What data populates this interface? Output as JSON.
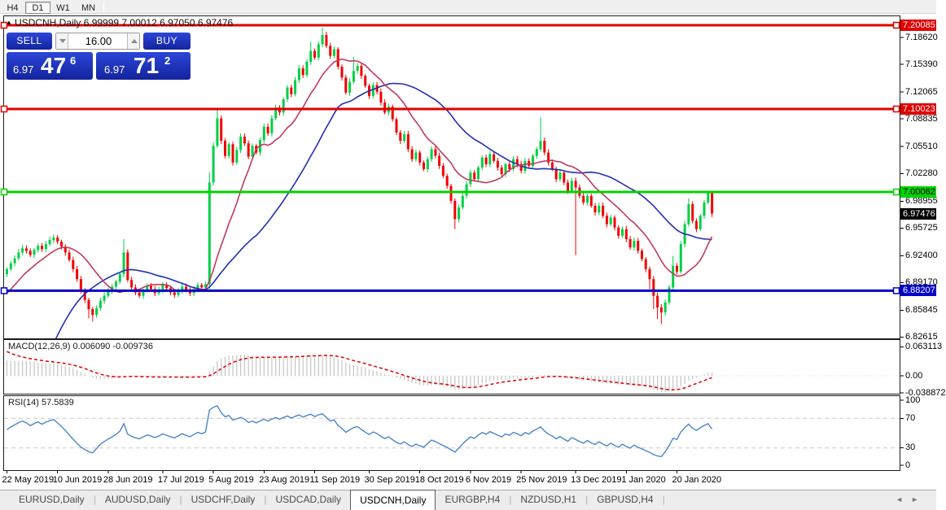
{
  "toolbar": {
    "timeframes": [
      {
        "label": "H4",
        "active": false
      },
      {
        "label": "D1",
        "active": true
      },
      {
        "label": "W1",
        "active": false
      },
      {
        "label": "MN",
        "active": false
      }
    ]
  },
  "chart": {
    "title_symbol": "USDCNH,Daily",
    "title_ohlc": "6.99999 7.00012 6.97050 6.97476",
    "colors": {
      "bull": "#00cf46",
      "bear": "#f20000",
      "ma_fast": "#c13a5e",
      "ma_slow": "#2230b4",
      "macd_bar": "#c4c4c4",
      "macd_signal": "#e00000",
      "rsi_line": "#4a86c9",
      "level_dash": "#c9c9c9"
    },
    "hlines": [
      {
        "label": "7.20085",
        "price": 7.20085,
        "color": "#e00000",
        "text": "#ffffff"
      },
      {
        "label": "7.10023",
        "price": 7.10023,
        "color": "#e00000",
        "text": "#ffffff"
      },
      {
        "label": "7.00062",
        "price": 7.00062,
        "color": "#00d200",
        "text": "#000000"
      },
      {
        "label": "6.88207",
        "price": 6.88207,
        "color": "#0000c8",
        "text": "#ffffff"
      }
    ],
    "current_price": {
      "label": "6.97476",
      "price": 6.97476,
      "bg": "#000000",
      "text": "#ffffff"
    },
    "axis_ticks": [
      {
        "label": "7.18620",
        "price": 7.1862
      },
      {
        "label": "7.15390",
        "price": 7.1539
      },
      {
        "label": "7.12065",
        "price": 7.12065
      },
      {
        "label": "7.08835",
        "price": 7.08835
      },
      {
        "label": "7.05510",
        "price": 7.0551
      },
      {
        "label": "7.02280",
        "price": 7.0228
      },
      {
        "label": "6.98955",
        "price": 6.98955
      },
      {
        "label": "6.95725",
        "price": 6.95725
      },
      {
        "label": "6.92400",
        "price": 6.924
      },
      {
        "label": "6.89170",
        "price": 6.8917
      },
      {
        "label": "6.85845",
        "price": 6.85845
      },
      {
        "label": "6.82615",
        "price": 6.82615
      }
    ],
    "candles": {
      "type": "candlestick",
      "first_open": 6.902,
      "closes": [
        6.908,
        6.915,
        6.921,
        6.928,
        6.933,
        6.93,
        6.925,
        6.931,
        6.936,
        6.932,
        6.938,
        6.943,
        6.946,
        6.941,
        6.935,
        6.928,
        6.919,
        6.908,
        6.896,
        6.882,
        6.871,
        6.86,
        6.853,
        6.861,
        6.87,
        6.876,
        6.882,
        6.887,
        6.893,
        6.902,
        6.928,
        6.895,
        6.886,
        6.88,
        6.876,
        6.882,
        6.888,
        6.884,
        6.879,
        6.883,
        6.889,
        6.885,
        6.88,
        6.877,
        6.882,
        6.887,
        6.883,
        6.879,
        6.884,
        6.889,
        6.886,
        6.89,
        7.012,
        7.056,
        7.089,
        7.062,
        7.044,
        7.058,
        7.036,
        7.051,
        7.067,
        7.059,
        7.043,
        7.056,
        7.048,
        7.063,
        7.079,
        7.071,
        7.089,
        7.102,
        7.096,
        7.112,
        7.126,
        7.118,
        7.135,
        7.149,
        7.141,
        7.157,
        7.17,
        7.162,
        7.178,
        7.189,
        7.176,
        7.164,
        7.172,
        7.151,
        7.138,
        7.12,
        7.133,
        7.146,
        7.152,
        7.14,
        7.128,
        7.116,
        7.129,
        7.121,
        7.108,
        7.096,
        7.103,
        7.088,
        7.072,
        7.062,
        7.07,
        7.052,
        7.04,
        7.048,
        7.036,
        7.028,
        7.04,
        7.052,
        7.044,
        7.032,
        7.02,
        7.008,
        6.99,
        6.968,
        6.982,
        6.996,
        7.01,
        7.024,
        7.016,
        7.03,
        7.042,
        7.034,
        7.046,
        7.038,
        7.03,
        7.022,
        7.034,
        7.028,
        7.04,
        7.034,
        7.026,
        7.038,
        7.032,
        7.044,
        7.052,
        7.062,
        7.048,
        7.036,
        7.028,
        7.016,
        7.024,
        7.012,
        7.002,
        7.014,
        7.006,
        6.996,
        6.988,
        6.996,
        6.984,
        6.976,
        6.984,
        6.972,
        6.962,
        6.97,
        6.958,
        6.948,
        6.956,
        6.944,
        6.934,
        6.942,
        6.93,
        6.92,
        6.908,
        6.896,
        6.876,
        6.862,
        6.856,
        6.868,
        6.886,
        6.912,
        6.905,
        6.938,
        6.962,
        6.986,
        6.966,
        6.956,
        6.972,
        6.988,
        6.99999,
        6.97476
      ],
      "overrides": {
        "21": {
          "l": 6.849
        },
        "22": {
          "l": 6.845
        },
        "30": {
          "h": 6.944
        },
        "52": {
          "h": 7.024,
          "l": 6.884
        },
        "54": {
          "h": 7.099
        },
        "78": {
          "h": 7.181
        },
        "81": {
          "h": 7.198
        },
        "89": {
          "h": 7.163
        },
        "115": {
          "l": 6.956
        },
        "137": {
          "h": 7.09
        },
        "146": {
          "l": 6.925
        },
        "165": {
          "l": 6.884
        },
        "166": {
          "l": 6.86
        },
        "167": {
          "l": 6.848
        },
        "168": {
          "l": 6.842
        },
        "171": {
          "h": 6.924
        },
        "175": {
          "h": 6.993
        },
        "180": {
          "h": 7.0005,
          "l": 6.9855
        }
      },
      "last": [
        6.99999,
        7.00012,
        6.9705,
        6.97476
      ]
    },
    "dates": {
      "labels": [
        "22 May 2019",
        "10 Jun 2019",
        "28 Jun 2019",
        "17 Jul 2019",
        "5 Aug 2019",
        "23 Aug 2019",
        "11 Sep 2019",
        "30 Sep 2019",
        "18 Oct 2019",
        "6 Nov 2019",
        "25 Nov 2019",
        "13 Dec 2019",
        "1 Jan 2020",
        "20 Jan 2020"
      ],
      "indices": [
        0,
        13,
        26,
        40,
        53,
        66,
        79,
        93,
        106,
        119,
        132,
        146,
        159,
        172
      ]
    }
  },
  "trade_panel": {
    "sell_label": "SELL",
    "buy_label": "BUY",
    "volume": "16.00",
    "sell_price": {
      "small": "6.97",
      "big": "47",
      "sup": "6"
    },
    "buy_price": {
      "small": "6.97",
      "big": "71",
      "sup": "2"
    }
  },
  "macd": {
    "label": "MACD(12,26,9)",
    "values": "0.006090 -0.009736",
    "axis_max": "0.063113",
    "axis_zero": "0.00",
    "axis_min": "-0.038872"
  },
  "rsi": {
    "label": "RSI(14)",
    "value": "57.5839",
    "axis": [
      "100",
      "70",
      "30",
      "0"
    ],
    "levels": [
      70,
      30
    ]
  },
  "tabs": {
    "items": [
      {
        "label": "EURUSD,Daily",
        "active": false
      },
      {
        "label": "AUDUSD,Daily",
        "active": false
      },
      {
        "label": "USDCHF,Daily",
        "active": false
      },
      {
        "label": "USDCAD,Daily",
        "active": false
      },
      {
        "label": "USDCNH,Daily",
        "active": true
      },
      {
        "label": "EURGBP,H4",
        "active": false
      },
      {
        "label": "NZDUSD,H1",
        "active": false
      },
      {
        "label": "GBPUSD,H4",
        "active": false
      }
    ],
    "scroll_left": "◄",
    "scroll_right": "►"
  }
}
